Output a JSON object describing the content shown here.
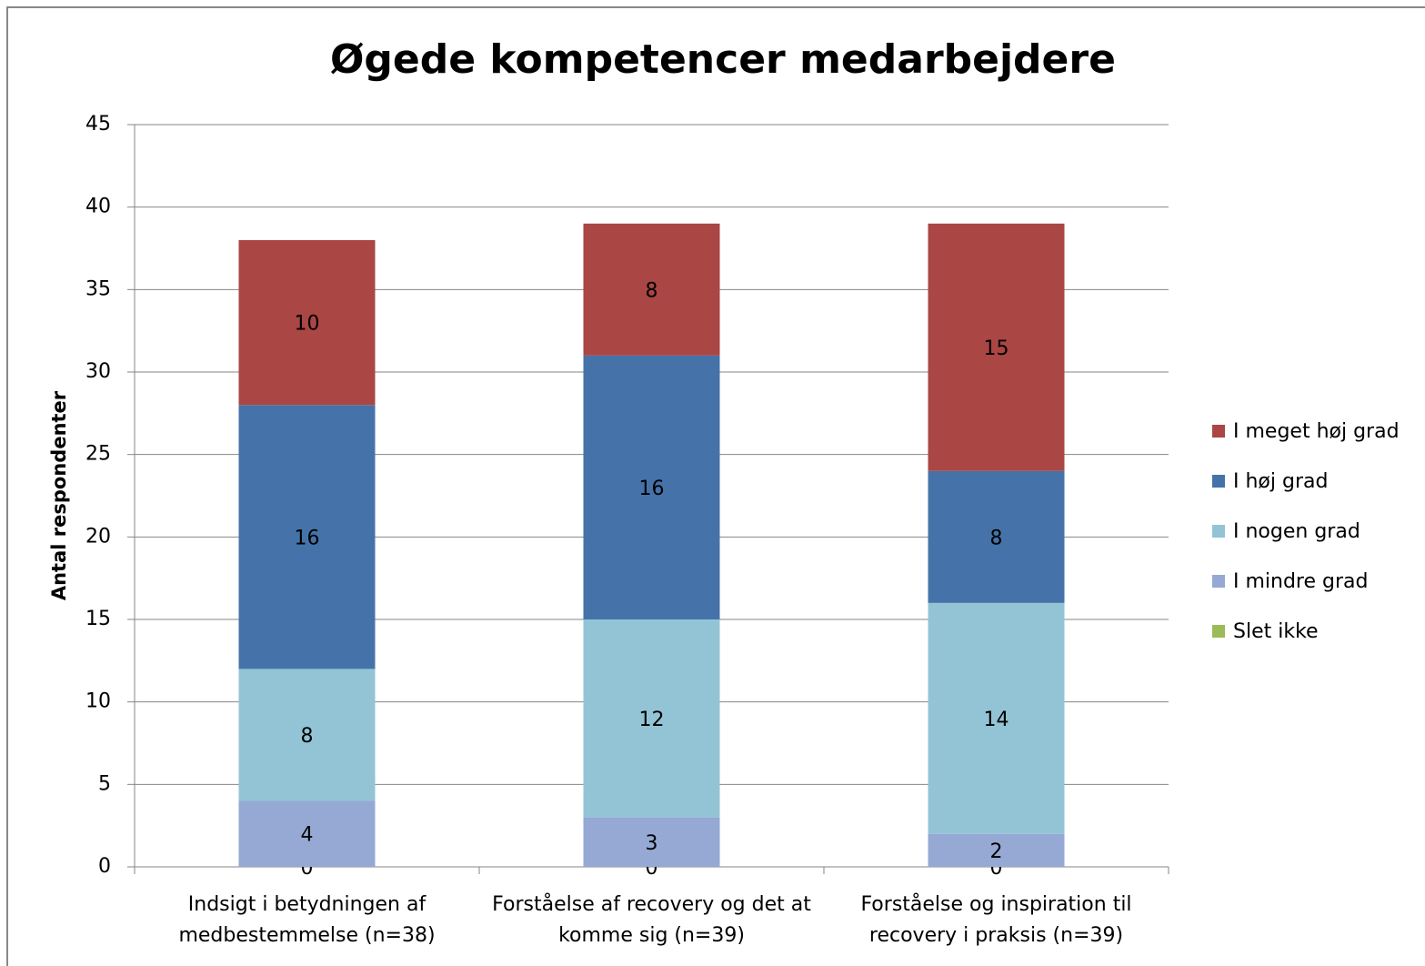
{
  "chart_data": {
    "type": "stacked_bar",
    "title": "Øgede kompetencer medarbejdere",
    "ylabel": "Antal respondenter",
    "categories": [
      [
        "Indsigt i betydningen af",
        "medbestemmelse (n=38)"
      ],
      [
        "Forståelse af recovery og det at",
        "komme sig (n=39)"
      ],
      [
        "Forståelse og inspiration til",
        "recovery i praksis (n=39)"
      ]
    ],
    "series": [
      {
        "name": "Slet ikke",
        "color": "#9bbb59",
        "values": [
          0,
          0,
          0
        ]
      },
      {
        "name": "I mindre grad",
        "color": "#95a9d4",
        "values": [
          4,
          3,
          2
        ]
      },
      {
        "name": "I nogen grad",
        "color": "#93c4d5",
        "values": [
          8,
          12,
          14
        ]
      },
      {
        "name": "I høj grad",
        "color": "#4573a9",
        "values": [
          16,
          16,
          8
        ]
      },
      {
        "name": "I meget høj grad",
        "color": "#aa4644",
        "values": [
          10,
          8,
          15
        ]
      }
    ],
    "ylim": [
      0,
      45
    ],
    "yticks": [
      0,
      5,
      10,
      15,
      20,
      25,
      30,
      35,
      40,
      45
    ],
    "grid": true,
    "legend": "right"
  }
}
